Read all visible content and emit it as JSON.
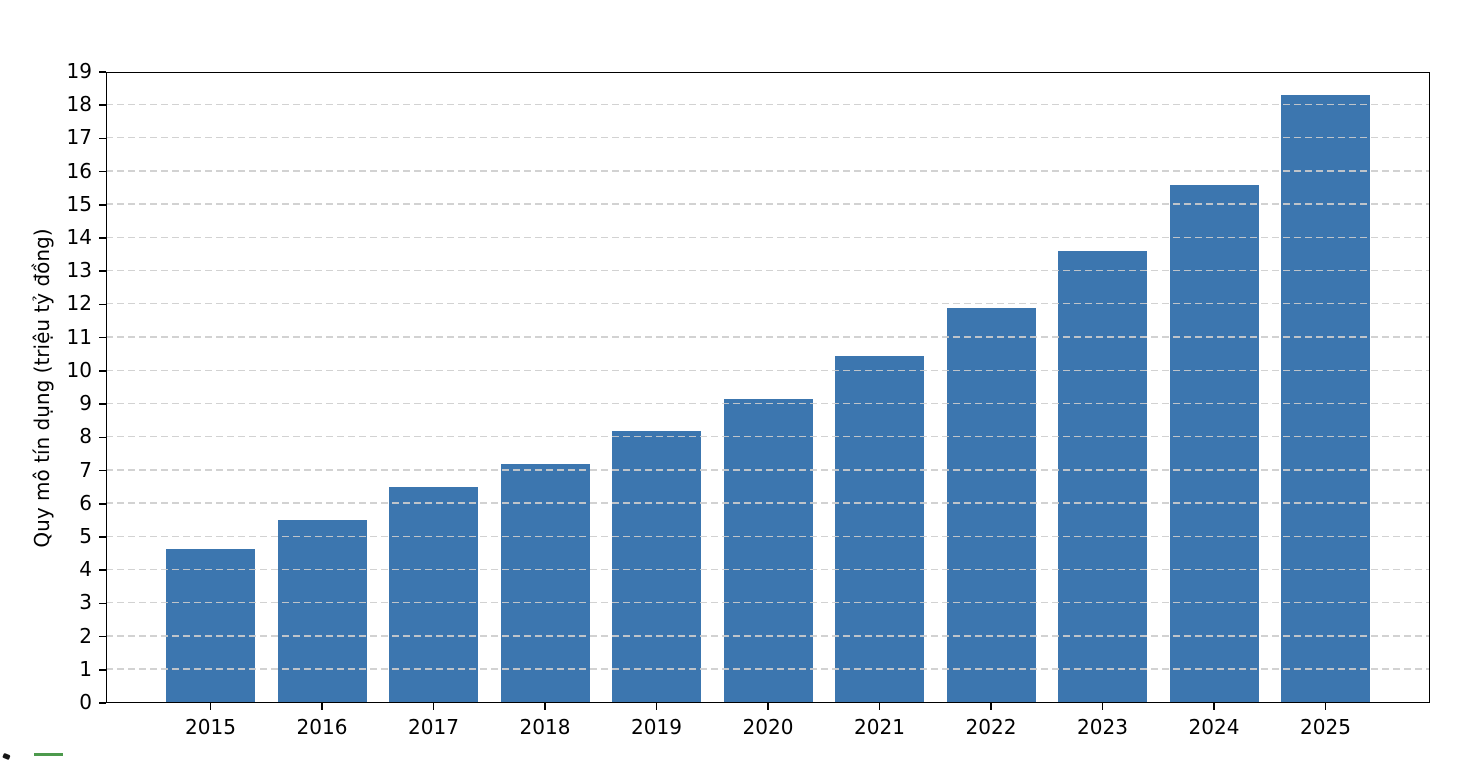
{
  "chart_data": {
    "type": "bar",
    "title": "",
    "xlabel": "",
    "ylabel": "Quy mô tín dụng (triệu tỷ đồng)",
    "categories": [
      "2015",
      "2016",
      "2017",
      "2018",
      "2019",
      "2020",
      "2021",
      "2022",
      "2023",
      "2024",
      "2025"
    ],
    "values": [
      4.65,
      5.5,
      6.5,
      7.2,
      8.2,
      9.15,
      10.45,
      11.9,
      13.6,
      15.6,
      18.3
    ],
    "ylim": [
      0,
      19
    ],
    "ytick_step": 1,
    "yticks": [
      "0",
      "1",
      "2",
      "3",
      "4",
      "5",
      "6",
      "7",
      "8",
      "9",
      "10",
      "11",
      "12",
      "13",
      "14",
      "15",
      "16",
      "17",
      "18",
      "19"
    ],
    "grid": "horizontal dashed lines drawn over bars",
    "legend_position": "none",
    "bar_color": "#3c76af",
    "grid_color": "#cdcdcd",
    "axis_color": "#000000",
    "text_color": "#000000"
  },
  "artifacts": {
    "note": "partially visible elements cut off at bottom-left edge of screenshot",
    "clipped_legend_line_color": "#4d9a4d"
  }
}
